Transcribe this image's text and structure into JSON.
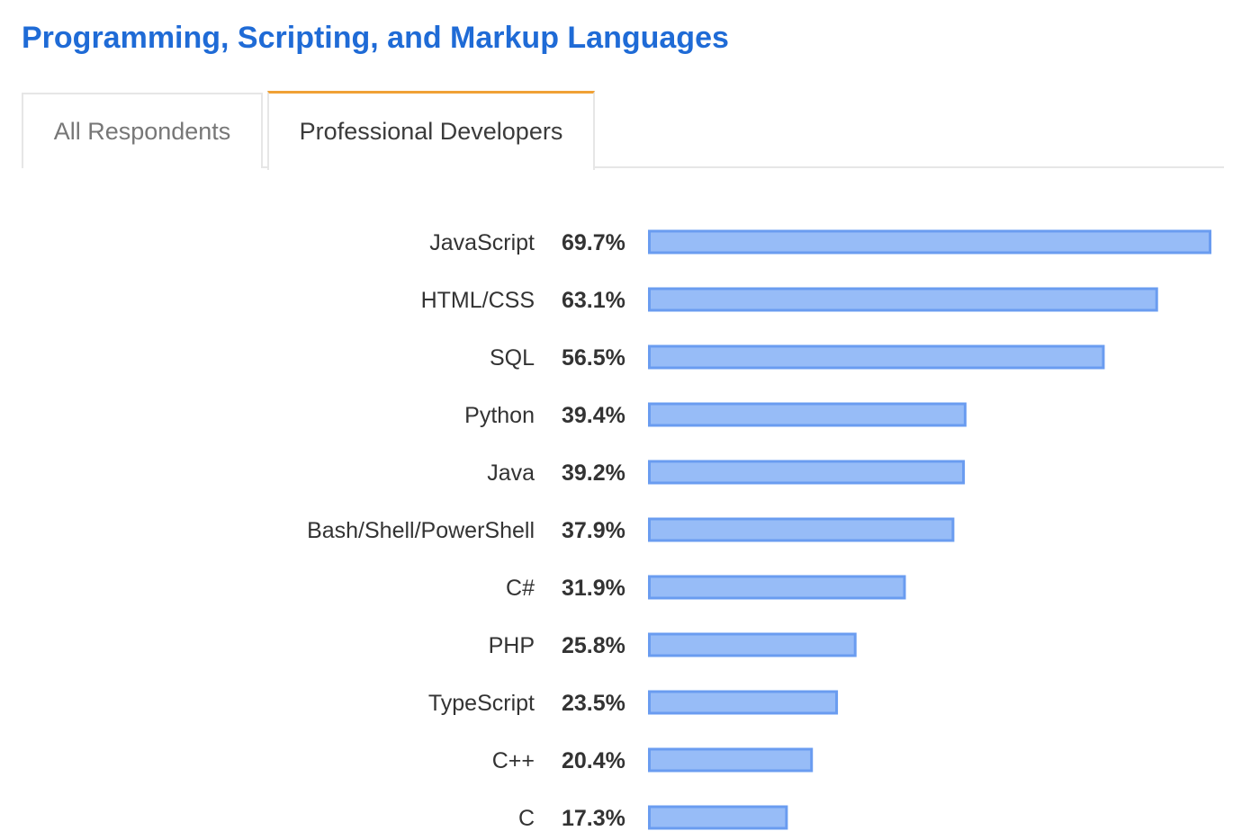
{
  "section": {
    "title": "Programming, Scripting, and Markup Languages"
  },
  "tabs": [
    {
      "label": "All Respondents",
      "active": false
    },
    {
      "label": "Professional Developers",
      "active": true
    }
  ],
  "colors": {
    "title": "#1f6bd6",
    "tab_active_accent": "#f0a135",
    "bar_fill": "#97bcf7",
    "bar_stroke": "#6a9cf0"
  },
  "chart_data": {
    "type": "bar",
    "orientation": "horizontal",
    "categories": [
      "JavaScript",
      "HTML/CSS",
      "SQL",
      "Python",
      "Java",
      "Bash/Shell/PowerShell",
      "C#",
      "PHP",
      "TypeScript",
      "C++",
      "C"
    ],
    "values": [
      69.7,
      63.1,
      56.5,
      39.4,
      39.2,
      37.9,
      31.9,
      25.8,
      23.5,
      20.4,
      17.3
    ],
    "value_labels": [
      "69.7%",
      "63.1%",
      "56.5%",
      "39.4%",
      "39.2%",
      "37.9%",
      "31.9%",
      "25.8%",
      "23.5%",
      "20.4%",
      "17.3%"
    ],
    "unit": "%",
    "grid": false,
    "legend": "none"
  }
}
